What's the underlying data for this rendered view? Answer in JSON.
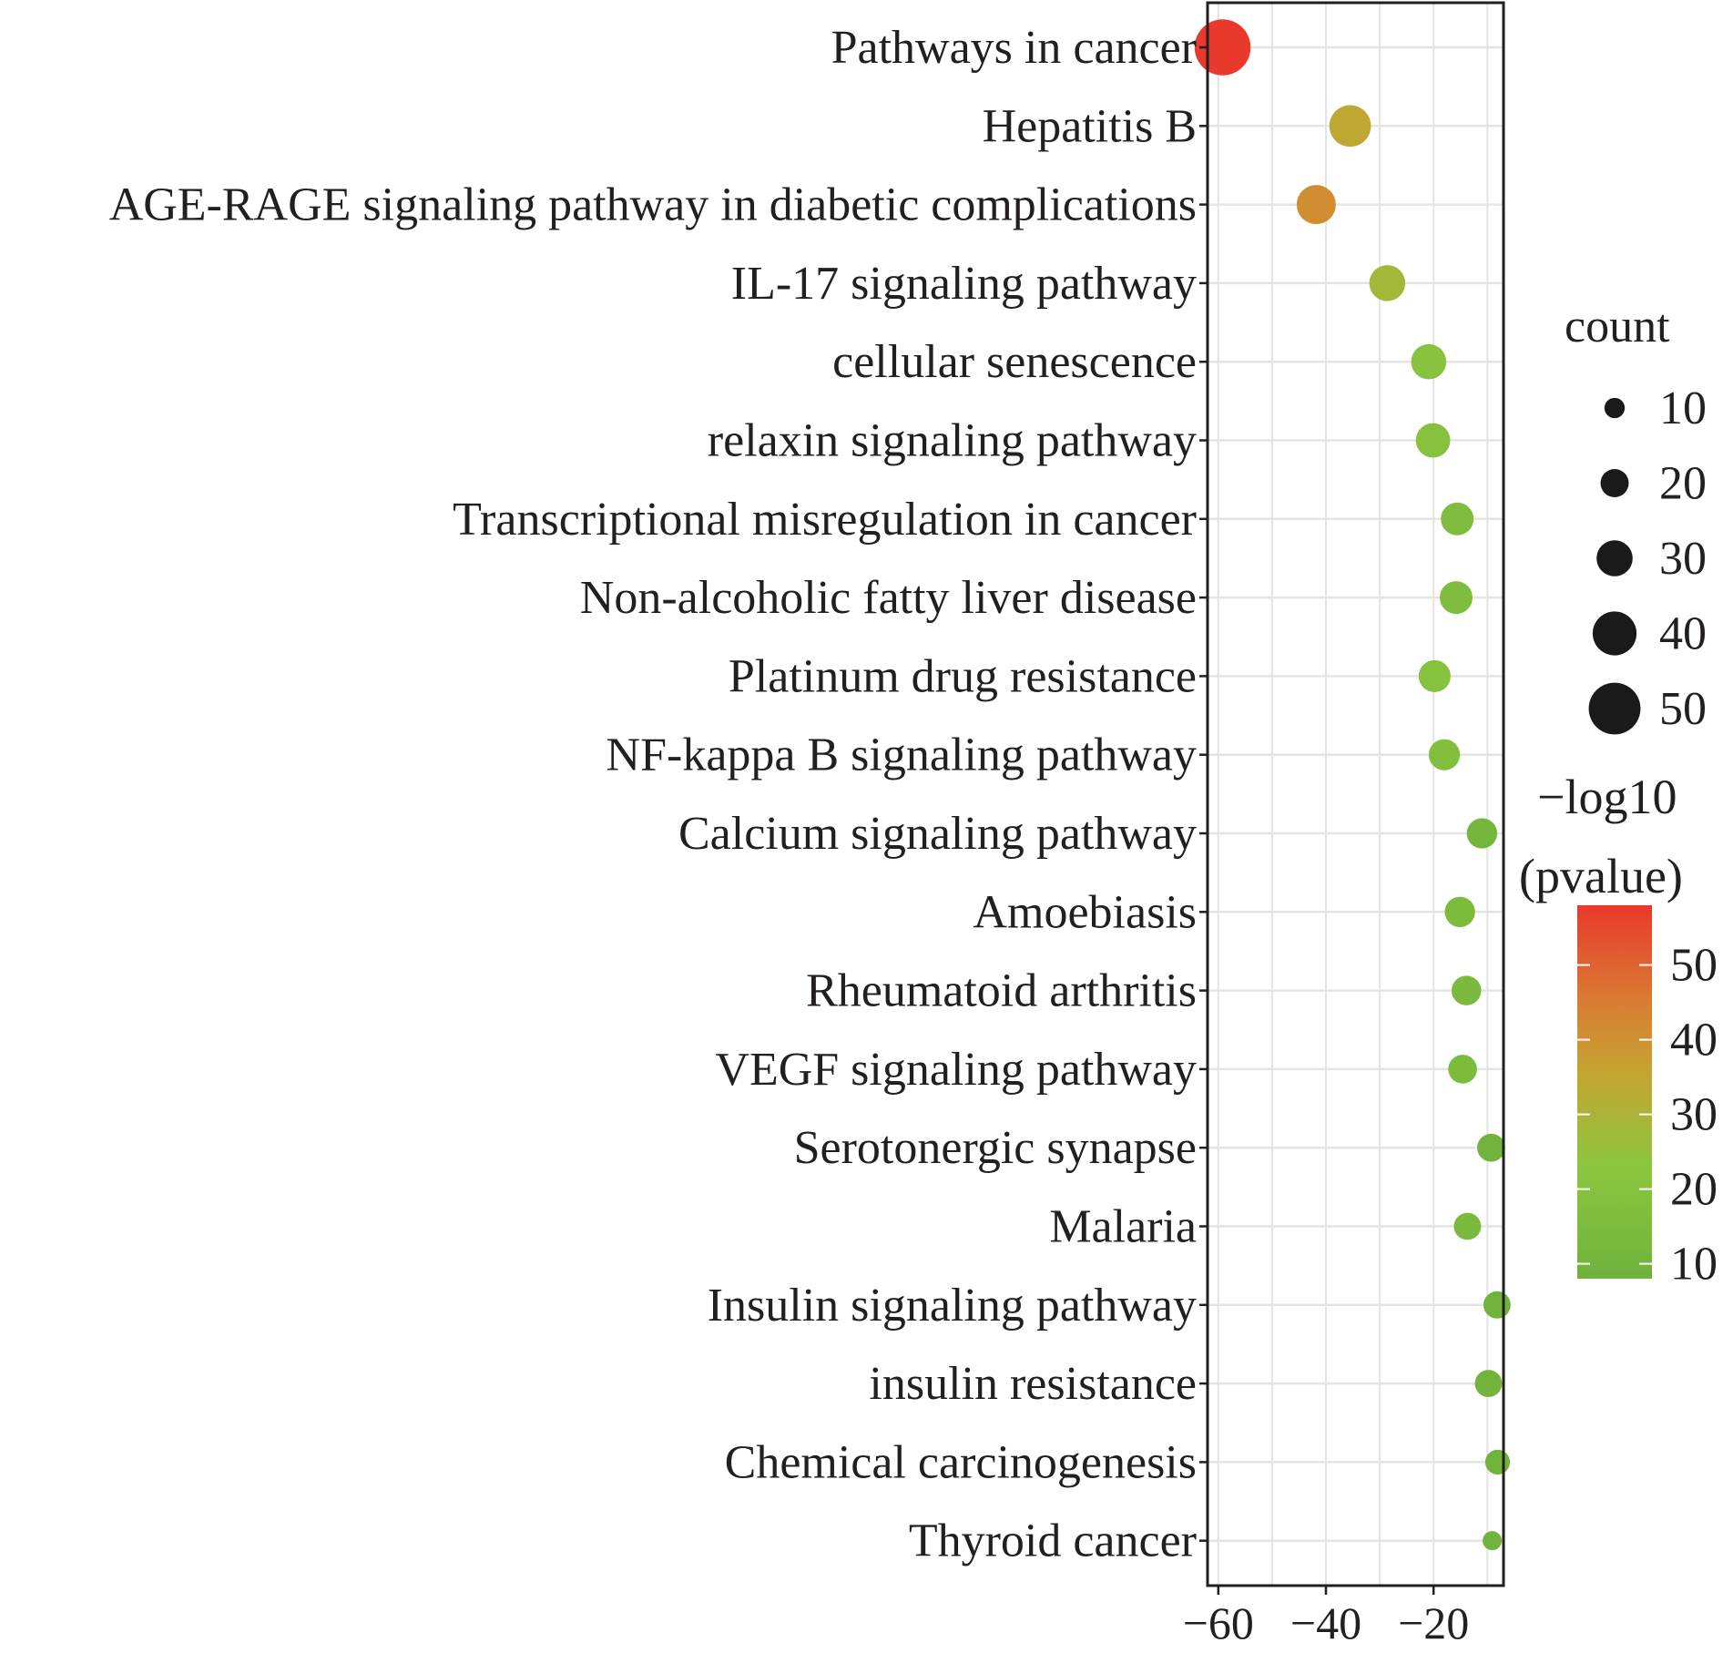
{
  "chart_data": {
    "type": "scatter",
    "title": "",
    "xlabel": "",
    "ylabel": "",
    "xlim": [
      -62,
      -7
    ],
    "x_ticks": [
      -60,
      -40,
      -20
    ],
    "x_tick_labels": [
      "−60",
      "−40",
      "−20"
    ],
    "grid": true,
    "legend_position": "right",
    "categories": [
      "Pathways in cancer",
      "Hepatitis B",
      "AGE-RAGE signaling pathway in diabetic complications",
      "IL-17 signaling pathway",
      "cellular senescence",
      "relaxin signaling pathway",
      "Transcriptional misregulation in cancer",
      "Non-alcoholic fatty liver disease",
      "Platinum drug resistance",
      "NF-kappa B signaling pathway",
      "Calcium signaling pathway",
      "Amoebiasis",
      "Rheumatoid arthritis",
      "VEGF signaling pathway",
      "Serotonergic synapse",
      "Malaria",
      "Insulin signaling pathway",
      "insulin resistance",
      "Chemical carcinogenesis",
      "Thyroid cancer"
    ],
    "points": [
      {
        "label": "Pathways in cancer",
        "x": -59.2,
        "count": 54,
        "neg_log10_pvalue": 58
      },
      {
        "label": "Hepatitis B",
        "x": -35.5,
        "count": 36,
        "neg_log10_pvalue": 34
      },
      {
        "label": "AGE-RAGE signaling pathway in diabetic complications",
        "x": -41.8,
        "count": 33,
        "neg_log10_pvalue": 41
      },
      {
        "label": "IL-17 signaling pathway",
        "x": -28.6,
        "count": 29,
        "neg_log10_pvalue": 28
      },
      {
        "label": "cellular senescence",
        "x": -20.9,
        "count": 28,
        "neg_log10_pvalue": 21
      },
      {
        "label": "relaxin signaling pathway",
        "x": -20.1,
        "count": 27,
        "neg_log10_pvalue": 20
      },
      {
        "label": "Transcriptional misregulation in cancer",
        "x": -15.6,
        "count": 25,
        "neg_log10_pvalue": 16
      },
      {
        "label": "Non-alcoholic fatty liver disease",
        "x": -15.8,
        "count": 25,
        "neg_log10_pvalue": 16
      },
      {
        "label": "Platinum drug resistance",
        "x": -19.8,
        "count": 24,
        "neg_log10_pvalue": 20
      },
      {
        "label": "NF-kappa B signaling pathway",
        "x": -18.0,
        "count": 23,
        "neg_log10_pvalue": 18
      },
      {
        "label": "Calcium signaling pathway",
        "x": -11.0,
        "count": 22,
        "neg_log10_pvalue": 11
      },
      {
        "label": "Amoebiasis",
        "x": -15.1,
        "count": 22,
        "neg_log10_pvalue": 15
      },
      {
        "label": "Rheumatoid arthritis",
        "x": -13.9,
        "count": 21,
        "neg_log10_pvalue": 14
      },
      {
        "label": "VEGF signaling pathway",
        "x": -14.6,
        "count": 20,
        "neg_log10_pvalue": 15
      },
      {
        "label": "Serotonergic synapse",
        "x": -9.3,
        "count": 19,
        "neg_log10_pvalue": 9
      },
      {
        "label": "Malaria",
        "x": -13.7,
        "count": 18,
        "neg_log10_pvalue": 14
      },
      {
        "label": "Insulin signaling pathway",
        "x": -8.2,
        "count": 18,
        "neg_log10_pvalue": 8
      },
      {
        "label": "insulin resistance",
        "x": -9.8,
        "count": 18,
        "neg_log10_pvalue": 10
      },
      {
        "label": "Chemical carcinogenesis",
        "x": -8.1,
        "count": 15,
        "neg_log10_pvalue": 8
      },
      {
        "label": "Thyroid cancer",
        "x": -9.1,
        "count": 8,
        "neg_log10_pvalue": 9
      }
    ],
    "size_legend": {
      "title": "count",
      "values": [
        10,
        20,
        30,
        40,
        50
      ]
    },
    "color_legend": {
      "title_lines": [
        "−log10",
        "(pvalue)"
      ],
      "range": [
        8,
        58
      ],
      "ticks": [
        10,
        20,
        30,
        40,
        50
      ],
      "colors": [
        "#6fb23c",
        "#8cc63f",
        "#c5a431",
        "#da7a33",
        "#e8392c"
      ]
    }
  }
}
